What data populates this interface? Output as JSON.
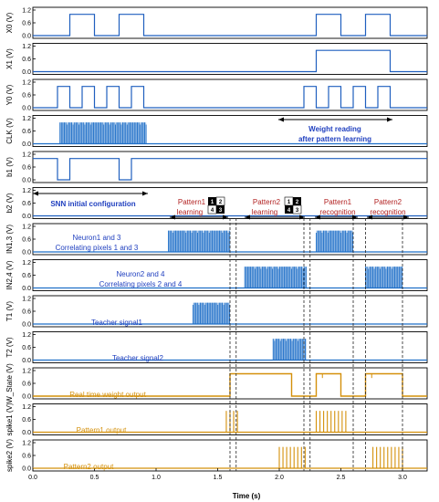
{
  "chart_data": {
    "type": "line",
    "xlabel": "Time (s)",
    "xlim": [
      0.0,
      3.2
    ],
    "xticks": [
      "0.0",
      "0.5",
      "1.0",
      "1.5",
      "2.0",
      "2.5",
      "3.0"
    ],
    "xtick_values": [
      0.0,
      0.5,
      1.0,
      1.5,
      2.0,
      2.5,
      3.0
    ],
    "ylim": [
      0,
      1.2
    ],
    "yticks": [
      "0.0",
      "0.6",
      "1.2"
    ],
    "ytick_values": [
      0.0,
      0.6,
      1.2
    ],
    "vertical_markers": [
      1.6,
      1.65,
      2.2,
      2.25,
      2.6,
      2.7,
      3.0
    ],
    "panels": [
      {
        "id": "X0",
        "ylabel": "X0 (V)",
        "kind": "square",
        "color": "#1f5fbf",
        "pulses": [
          [
            0.3,
            0.5
          ],
          [
            0.7,
            0.9
          ],
          [
            2.3,
            2.5
          ],
          [
            2.7,
            2.9
          ]
        ]
      },
      {
        "id": "X1",
        "ylabel": "X1 (V)",
        "kind": "square",
        "color": "#1f5fbf",
        "pulses": [
          [
            2.3,
            2.9
          ]
        ]
      },
      {
        "id": "Y0",
        "ylabel": "Y0 (V)",
        "kind": "square",
        "color": "#1f5fbf",
        "pulses": [
          [
            0.2,
            0.3
          ],
          [
            0.4,
            0.5
          ],
          [
            0.6,
            0.7
          ],
          [
            0.8,
            0.9
          ],
          [
            2.2,
            2.3
          ],
          [
            2.4,
            2.5
          ],
          [
            2.6,
            2.7
          ],
          [
            2.8,
            2.9
          ]
        ]
      },
      {
        "id": "CLK",
        "ylabel": "CLK (V)",
        "kind": "dense",
        "color": "#1f6fc8",
        "bands": [
          [
            0.22,
            0.92
          ]
        ]
      },
      {
        "id": "b1",
        "ylabel": "b1 (V)",
        "kind": "inverted",
        "color": "#1f5fbf",
        "dips": [
          [
            0.2,
            0.3
          ],
          [
            0.7,
            0.8
          ]
        ]
      },
      {
        "id": "b2",
        "ylabel": "b2 (V)",
        "kind": "flat",
        "color": "#1f5fbf",
        "level": 0.0
      },
      {
        "id": "IN13",
        "ylabel": "IN1,3 (V)",
        "kind": "dense",
        "color": "#1f6fc8",
        "bands": [
          [
            1.1,
            1.6
          ],
          [
            2.3,
            2.6
          ]
        ]
      },
      {
        "id": "IN24",
        "ylabel": "IN2,4 (V)",
        "kind": "dense",
        "color": "#1f6fc8",
        "bands": [
          [
            1.72,
            2.22
          ],
          [
            2.7,
            3.0
          ]
        ]
      },
      {
        "id": "T1",
        "ylabel": "T1 (V)",
        "kind": "dense",
        "color": "#1f6fc8",
        "bands": [
          [
            1.3,
            1.6
          ]
        ]
      },
      {
        "id": "T2",
        "ylabel": "T2 (V)",
        "kind": "dense",
        "color": "#1f6fc8",
        "bands": [
          [
            1.95,
            2.22
          ]
        ]
      },
      {
        "id": "WState",
        "ylabel": "W_State (V)",
        "kind": "wstate",
        "color": "#d4900a",
        "steps": [
          [
            0.0,
            0.0
          ],
          [
            1.6,
            0.0
          ],
          [
            1.6,
            1.05
          ],
          [
            2.1,
            1.05
          ],
          [
            2.1,
            0.0
          ],
          [
            2.3,
            0.0
          ],
          [
            2.3,
            1.05
          ],
          [
            2.5,
            1.05
          ],
          [
            2.5,
            0.0
          ],
          [
            2.7,
            0.0
          ],
          [
            2.7,
            1.05
          ],
          [
            3.0,
            1.05
          ],
          [
            3.0,
            0.0
          ],
          [
            3.2,
            0.0
          ]
        ]
      },
      {
        "id": "spike1",
        "ylabel": "spike1 (V)",
        "kind": "spikes",
        "color": "#d4900a",
        "times": [
          1.57,
          1.6,
          1.63,
          1.66,
          2.3,
          2.33,
          2.36,
          2.39,
          2.42,
          2.45,
          2.48,
          2.51,
          2.54
        ]
      },
      {
        "id": "spike2",
        "ylabel": "spike2 (V)",
        "kind": "spikes",
        "color": "#d4900a",
        "times": [
          2.0,
          2.03,
          2.06,
          2.09,
          2.12,
          2.15,
          2.18,
          2.21,
          2.76,
          2.79,
          2.82,
          2.85,
          2.88,
          2.91,
          2.94,
          2.97,
          3.0
        ]
      }
    ],
    "annotations": {
      "weight_reading": [
        "Weight reading",
        "after pattern learning"
      ],
      "snn_config": "SNN initial configuration",
      "pattern1_learning": [
        "Pattern1",
        "learning"
      ],
      "pattern2_learning": [
        "Pattern2",
        "learning"
      ],
      "pattern1_recognition": [
        "Pattern1",
        "recognition"
      ],
      "pattern2_recognition": [
        "Pattern2",
        "recognition"
      ],
      "grid1": [
        "1",
        "2",
        "4",
        "3"
      ],
      "grid2": [
        "1",
        "2",
        "4",
        "3"
      ],
      "neuron13": [
        "Neuron1 and 3",
        "Correlating pixels 1 and 3"
      ],
      "neuron24": [
        "Neuron2 and 4",
        "Correlating pixels 2 and 4"
      ],
      "teacher1": "Teacher signal1",
      "teacher2": "Teacher signal2",
      "realtime": "Real time weight output",
      "p1out": "Pattern1 output",
      "p2out": "Pattern2 output"
    }
  }
}
